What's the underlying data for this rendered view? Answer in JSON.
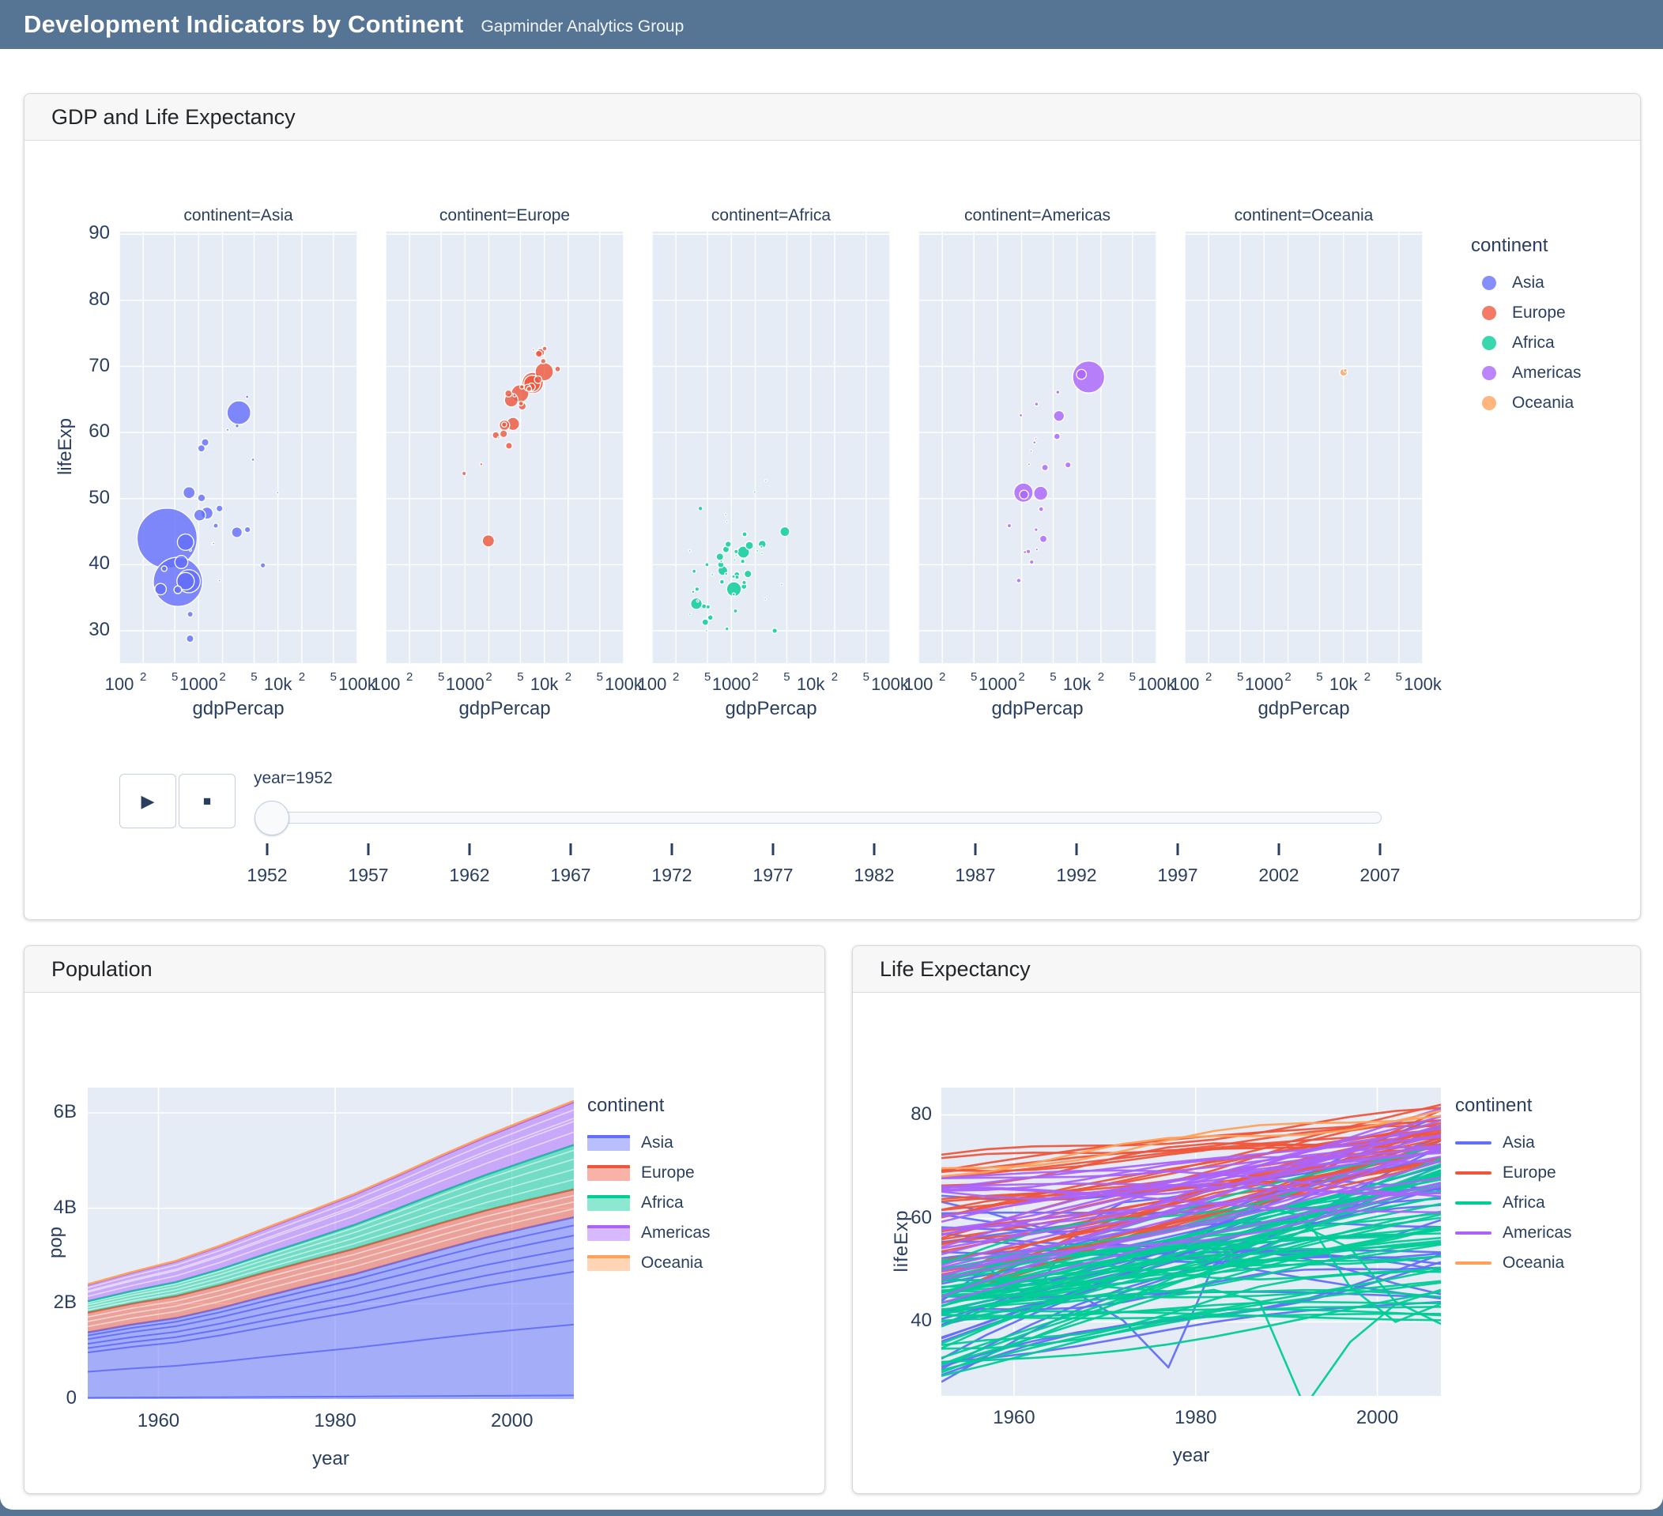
{
  "header": {
    "title": "Development Indicators by Continent",
    "subtitle": "Gapminder Analytics Group"
  },
  "colors": {
    "header_bg": "#567494",
    "plot_bg": "#E5ECF6",
    "grid": "#ffffff",
    "axis_text": "#2a3f5f",
    "card_header_bg": "#f7f7f7",
    "palette": {
      "Asia": "#636EFA",
      "Europe": "#EF553B",
      "Africa": "#00CC96",
      "Americas": "#AB63FA",
      "Oceania": "#FFA15A"
    }
  },
  "cards": {
    "scatter": {
      "title": "GDP and Life Expectancy"
    },
    "population": {
      "title": "Population"
    },
    "life": {
      "title": "Life Expectancy"
    }
  },
  "chart_data": [
    {
      "type": "scatter",
      "title": "GDP and Life Expectancy",
      "facet_title_prefix": "continent=",
      "facets": [
        "Asia",
        "Europe",
        "Africa",
        "Americas",
        "Oceania"
      ],
      "xlabel": "gdpPercap",
      "ylabel": "lifeExp",
      "x_range": [
        100,
        100000
      ],
      "y_range": [
        25,
        90.5
      ],
      "y_ticks": [
        30,
        40,
        50,
        60,
        70,
        80,
        90
      ],
      "x_decade_labels": [
        "100",
        "1000",
        "10k",
        "100k"
      ],
      "x_minor_labels": [
        "2",
        "5"
      ],
      "legend_title": "continent",
      "grid": true,
      "year_shown": 1952,
      "animation": {
        "year_label": "year=1952",
        "play_icon": "▶",
        "stop_icon": "■",
        "slider_years": [
          1952,
          1957,
          1962,
          1967,
          1972,
          1977,
          1982,
          1987,
          1992,
          1997,
          2002,
          2007
        ]
      },
      "points_format": [
        "gdpPercap",
        "lifeExp",
        "pop_millions"
      ],
      "points": {
        "Asia": [
          [
            779,
            28.8,
            8.4
          ],
          [
            9867,
            50.9,
            0.12
          ],
          [
            684,
            37.5,
            46.9
          ],
          [
            368,
            39.4,
            4.7
          ],
          [
            400,
            44.0,
            556.3
          ],
          [
            3054,
            61.0,
            2.1
          ],
          [
            547,
            37.4,
            372.0
          ],
          [
            750,
            37.5,
            82.1
          ],
          [
            3035,
            44.9,
            17.3
          ],
          [
            4130,
            45.3,
            5.4
          ],
          [
            4087,
            65.4,
            1.6
          ],
          [
            3217,
            63.0,
            86.5
          ],
          [
            1547,
            43.2,
            0.61
          ],
          [
            1088,
            50.1,
            8.9
          ],
          [
            1031,
            47.5,
            21.0
          ],
          [
            108382,
            55.6,
            0.16
          ],
          [
            4834,
            55.9,
            1.4
          ],
          [
            1831,
            48.5,
            6.8
          ],
          [
            787,
            42.2,
            0.8
          ],
          [
            331,
            36.3,
            20.1
          ],
          [
            546,
            36.2,
            9.2
          ],
          [
            1828,
            37.6,
            0.51
          ],
          [
            684,
            43.4,
            41.3
          ],
          [
            1273,
            47.8,
            22.4
          ],
          [
            6460,
            39.9,
            4.0
          ],
          [
            2315,
            60.4,
            1.1
          ],
          [
            1084,
            57.6,
            8.0
          ],
          [
            1643,
            45.9,
            3.7
          ],
          [
            1207,
            58.5,
            8.6
          ],
          [
            757,
            50.9,
            21.7
          ],
          [
            605,
            40.4,
            26.2
          ],
          [
            1516,
            43.2,
            1.0
          ],
          [
            782,
            32.5,
            5.0
          ]
        ],
        "Europe": [
          [
            1601,
            55.2,
            1.28
          ],
          [
            6137,
            66.8,
            6.9
          ],
          [
            8343,
            68.0,
            8.7
          ],
          [
            974,
            53.8,
            2.8
          ],
          [
            2444,
            59.6,
            7.3
          ],
          [
            3119,
            61.2,
            3.9
          ],
          [
            6876,
            66.9,
            9.1
          ],
          [
            9692,
            70.8,
            4.3
          ],
          [
            6425,
            66.6,
            4.1
          ],
          [
            7030,
            67.4,
            42.5
          ],
          [
            7144,
            67.5,
            69.1
          ],
          [
            3530,
            65.9,
            7.7
          ],
          [
            5264,
            64.0,
            9.5
          ],
          [
            7268,
            72.5,
            0.15
          ],
          [
            5210,
            66.9,
            3.0
          ],
          [
            4931,
            65.9,
            47.7
          ],
          [
            2647,
            59.2,
            0.41
          ],
          [
            8942,
            72.1,
            10.4
          ],
          [
            10095,
            72.7,
            3.3
          ],
          [
            4029,
            61.3,
            25.7
          ],
          [
            3068,
            59.8,
            8.5
          ],
          [
            3144,
            61.1,
            16.6
          ],
          [
            3581,
            58.0,
            6.9
          ],
          [
            5074,
            64.4,
            3.6
          ],
          [
            4215,
            65.6,
            1.5
          ],
          [
            3834,
            64.9,
            28.5
          ],
          [
            8528,
            71.9,
            7.1
          ],
          [
            14734,
            69.6,
            4.8
          ],
          [
            1969,
            43.6,
            22.2
          ],
          [
            9980,
            69.2,
            50.4
          ]
        ],
        "Africa": [
          [
            2449,
            43.1,
            9.3
          ],
          [
            3521,
            30.0,
            4.2
          ],
          [
            1063,
            38.2,
            1.7
          ],
          [
            851,
            47.6,
            0.44
          ],
          [
            543,
            32.0,
            4.5
          ],
          [
            339,
            39.0,
            2.4
          ],
          [
            1173,
            38.5,
            5.0
          ],
          [
            1071,
            35.5,
            1.3
          ],
          [
            1179,
            38.1,
            2.7
          ],
          [
            1103,
            40.7,
            0.15
          ],
          [
            780,
            39.1,
            14.1
          ],
          [
            2126,
            42.1,
            0.85
          ],
          [
            1389,
            40.5,
            3.0
          ],
          [
            2670,
            34.8,
            0.06
          ],
          [
            1419,
            41.9,
            22.2
          ],
          [
            376,
            34.5,
            0.22
          ],
          [
            329,
            35.9,
            1.4
          ],
          [
            362,
            34.1,
            20.3
          ],
          [
            4293,
            37.0,
            0.42
          ],
          [
            485,
            30.0,
            0.28
          ],
          [
            911,
            43.1,
            5.6
          ],
          [
            510,
            33.6,
            2.7
          ],
          [
            300,
            32.5,
            0.58
          ],
          [
            854,
            42.3,
            6.5
          ],
          [
            299,
            42.1,
            0.75
          ],
          [
            575,
            38.5,
            0.86
          ],
          [
            2394,
            42.7,
            1.0
          ],
          [
            1443,
            36.7,
            4.8
          ],
          [
            369,
            36.3,
            2.9
          ],
          [
            452,
            33.7,
            3.8
          ],
          [
            743,
            40.5,
            1.0
          ],
          [
            1968,
            51.0,
            0.52
          ],
          [
            1688,
            42.9,
            9.9
          ],
          [
            469,
            31.3,
            6.4
          ],
          [
            2424,
            41.7,
            0.49
          ],
          [
            761,
            37.4,
            3.4
          ],
          [
            1077,
            36.3,
            33.1
          ],
          [
            2719,
            52.7,
            0.26
          ],
          [
            493,
            40.0,
            2.5
          ],
          [
            880,
            46.5,
            0.06
          ],
          [
            1450,
            37.3,
            2.8
          ],
          [
            880,
            30.3,
            2.1
          ],
          [
            1126,
            33.0,
            2.5
          ],
          [
            4725,
            45.0,
            14.3
          ],
          [
            1616,
            38.6,
            8.5
          ],
          [
            1148,
            41.4,
            0.29
          ],
          [
            717,
            41.2,
            8.3
          ],
          [
            859,
            38.6,
            1.2
          ],
          [
            1468,
            44.6,
            3.6
          ],
          [
            735,
            40.0,
            5.8
          ],
          [
            1147,
            42.0,
            2.7
          ],
          [
            407,
            48.5,
            3.1
          ]
        ],
        "Americas": [
          [
            5911,
            62.5,
            17.9
          ],
          [
            2677,
            40.4,
            2.9
          ],
          [
            2109,
            50.9,
            56.6
          ],
          [
            11367,
            68.8,
            14.8
          ],
          [
            3940,
            54.7,
            6.4
          ],
          [
            2144,
            50.6,
            12.4
          ],
          [
            2627,
            57.2,
            0.93
          ],
          [
            5587,
            59.4,
            6.0
          ],
          [
            1398,
            45.9,
            2.5
          ],
          [
            3522,
            48.4,
            3.5
          ],
          [
            3048,
            45.3,
            2.0
          ],
          [
            2428,
            42.0,
            3.1
          ],
          [
            1840,
            37.6,
            3.2
          ],
          [
            2195,
            41.9,
            1.5
          ],
          [
            2899,
            58.5,
            1.4
          ],
          [
            3478,
            50.8,
            30.1
          ],
          [
            3112,
            42.3,
            1.2
          ],
          [
            2480,
            55.2,
            0.94
          ],
          [
            1952,
            62.6,
            1.6
          ],
          [
            3759,
            43.9,
            8.0
          ],
          [
            3081,
            64.3,
            2.2
          ],
          [
            3023,
            59.1,
            0.66
          ],
          [
            5717,
            66.1,
            2.3
          ],
          [
            13990,
            68.4,
            157.6
          ],
          [
            7690,
            55.1,
            5.4
          ]
        ],
        "Oceania": [
          [
            10040,
            69.1,
            8.7
          ],
          [
            10557,
            69.4,
            2.0
          ]
        ]
      },
      "size_by": "pop",
      "max_pop_millions": 556.3
    },
    {
      "type": "area",
      "title": "Population",
      "x": [
        1952,
        1957,
        1962,
        1967,
        1972,
        1977,
        1982,
        1987,
        1992,
        1997,
        2002,
        2007
      ],
      "series": [
        {
          "name": "Asia",
          "values_billions": [
            1.395,
            1.562,
            1.696,
            1.906,
            2.15,
            2.384,
            2.61,
            2.871,
            3.133,
            3.383,
            3.602,
            3.811
          ]
        },
        {
          "name": "Europe",
          "values_billions": [
            0.418,
            0.438,
            0.46,
            0.481,
            0.501,
            0.517,
            0.531,
            0.543,
            0.558,
            0.569,
            0.578,
            0.586
          ]
        },
        {
          "name": "Africa",
          "values_billions": [
            0.237,
            0.264,
            0.296,
            0.335,
            0.38,
            0.433,
            0.499,
            0.575,
            0.659,
            0.744,
            0.834,
            0.93
          ]
        },
        {
          "name": "Americas",
          "values_billions": [
            0.345,
            0.387,
            0.434,
            0.481,
            0.53,
            0.578,
            0.631,
            0.683,
            0.74,
            0.794,
            0.849,
            0.899
          ]
        },
        {
          "name": "Oceania",
          "values_billions": [
            0.011,
            0.012,
            0.013,
            0.015,
            0.016,
            0.017,
            0.018,
            0.02,
            0.021,
            0.022,
            0.024,
            0.025
          ]
        }
      ],
      "stacked_by_country": true,
      "band_fractions": {
        "Asia": [
          0.02,
          0.41,
          0.7,
          0.765,
          0.83,
          0.9,
          0.955
        ],
        "Europe": [
          0.3,
          0.55,
          0.78
        ],
        "Africa": [
          0.22,
          0.45,
          0.68,
          0.88
        ],
        "Americas": [
          0.3,
          0.55,
          0.62,
          0.82
        ],
        "Oceania": []
      },
      "xlabel": "year",
      "ylabel": "pop",
      "y_ticks": [
        {
          "v": 0,
          "label": "0"
        },
        {
          "v": 2,
          "label": "2B"
        },
        {
          "v": 4,
          "label": "4B"
        },
        {
          "v": 6,
          "label": "6B"
        }
      ],
      "x_ticks": [
        1960,
        1980,
        2000
      ],
      "ylim_billions": [
        0,
        6.53
      ],
      "legend_title": "continent",
      "legend": [
        "Asia",
        "Europe",
        "Africa",
        "Americas",
        "Oceania"
      ]
    },
    {
      "type": "line",
      "title": "Life Expectancy",
      "x": [
        1952,
        1957,
        1962,
        1967,
        1972,
        1977,
        1982,
        1987,
        1992,
        1997,
        2002,
        2007
      ],
      "xlabel": "year",
      "ylabel": "lifeExp",
      "y_ticks": [
        40,
        60,
        80
      ],
      "x_ticks": [
        1960,
        1980,
        2000
      ],
      "ylim": [
        25.7,
        85.3
      ],
      "legend_title": "continent",
      "legend": [
        "Asia",
        "Europe",
        "Africa",
        "Americas",
        "Oceania"
      ],
      "lines_are_countries": true,
      "continent_line_counts": {
        "Asia": 33,
        "Europe": 30,
        "Africa": 52,
        "Americas": 25,
        "Oceania": 2
      },
      "generated_bands": {
        "Asia": {
          "n": 28,
          "start": [
            28.8,
            65.4
          ],
          "end": [
            43.8,
            82.6
          ]
        },
        "Europe": {
          "n": 29,
          "start": [
            43.6,
            72.7
          ],
          "end": [
            71.3,
            81.7
          ]
        },
        "Africa": {
          "n": 47,
          "start": [
            30.0,
            52.0
          ],
          "end": [
            39.6,
            73.0
          ]
        },
        "Americas": {
          "n": 25,
          "start": [
            37.6,
            68.8
          ],
          "end": [
            60.9,
            80.7
          ]
        },
        "Oceania": {
          "n": 2,
          "start": [
            69.1,
            69.4
          ],
          "end": [
            80.2,
            81.2
          ]
        }
      },
      "highlight_series": [
        {
          "name": "Cambodia",
          "continent": "Asia",
          "values": [
            39.4,
            41.4,
            43.4,
            45.4,
            40.3,
            31.2,
            51.0,
            53.9,
            55.8,
            56.5,
            56.8,
            59.7
          ]
        },
        {
          "name": "China",
          "continent": "Asia",
          "values": [
            44.0,
            50.5,
            44.5,
            58.4,
            63.1,
            64.0,
            65.5,
            67.3,
            68.7,
            70.4,
            72.0,
            73.0
          ]
        },
        {
          "name": "Rwanda",
          "continent": "Africa",
          "values": [
            40.0,
            41.5,
            43.0,
            44.1,
            44.6,
            45.0,
            46.2,
            44.0,
            23.6,
            36.1,
            43.4,
            46.2
          ]
        },
        {
          "name": "Zimbabwe",
          "continent": "Africa",
          "values": [
            48.5,
            50.5,
            52.4,
            54.0,
            55.6,
            57.7,
            60.4,
            62.4,
            60.4,
            46.8,
            40.0,
            43.5
          ]
        },
        {
          "name": "Swaziland",
          "continent": "Africa",
          "values": [
            41.4,
            43.4,
            45.0,
            46.6,
            49.6,
            52.5,
            55.6,
            57.7,
            58.3,
            54.3,
            43.9,
            39.6
          ]
        }
      ]
    }
  ]
}
